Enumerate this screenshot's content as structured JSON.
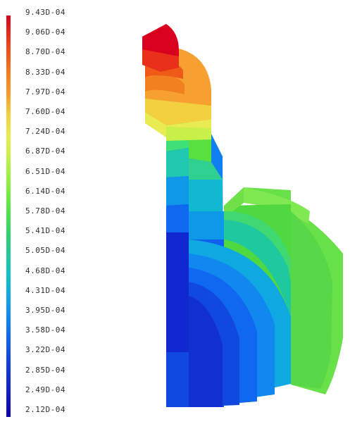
{
  "legend": {
    "labels": [
      "9.43D-04",
      "9.06D-04",
      "8.70D-04",
      "8.33D-04",
      "7.97D-04",
      "7.60D-04",
      "7.24D-04",
      "6.87D-04",
      "6.51D-04",
      "6.14D-04",
      "5.78D-04",
      "5.41D-04",
      "5.05D-04",
      "4.68D-04",
      "4.31D-04",
      "3.95D-04",
      "3.58D-04",
      "3.22D-04",
      "2.85D-04",
      "2.49D-04",
      "2.12D-04"
    ],
    "colors": [
      "#d8001e",
      "#e8301a",
      "#f05a18",
      "#f38020",
      "#f5a030",
      "#f2d040",
      "#e8ec50",
      "#c8f048",
      "#9cf040",
      "#70ec40",
      "#48e050",
      "#30d070",
      "#20c8a0",
      "#10c0c8",
      "#10a8e0",
      "#1088f0",
      "#1068f0",
      "#1048e0",
      "#1030d0",
      "#1018c0",
      "#1000a8"
    ]
  }
}
